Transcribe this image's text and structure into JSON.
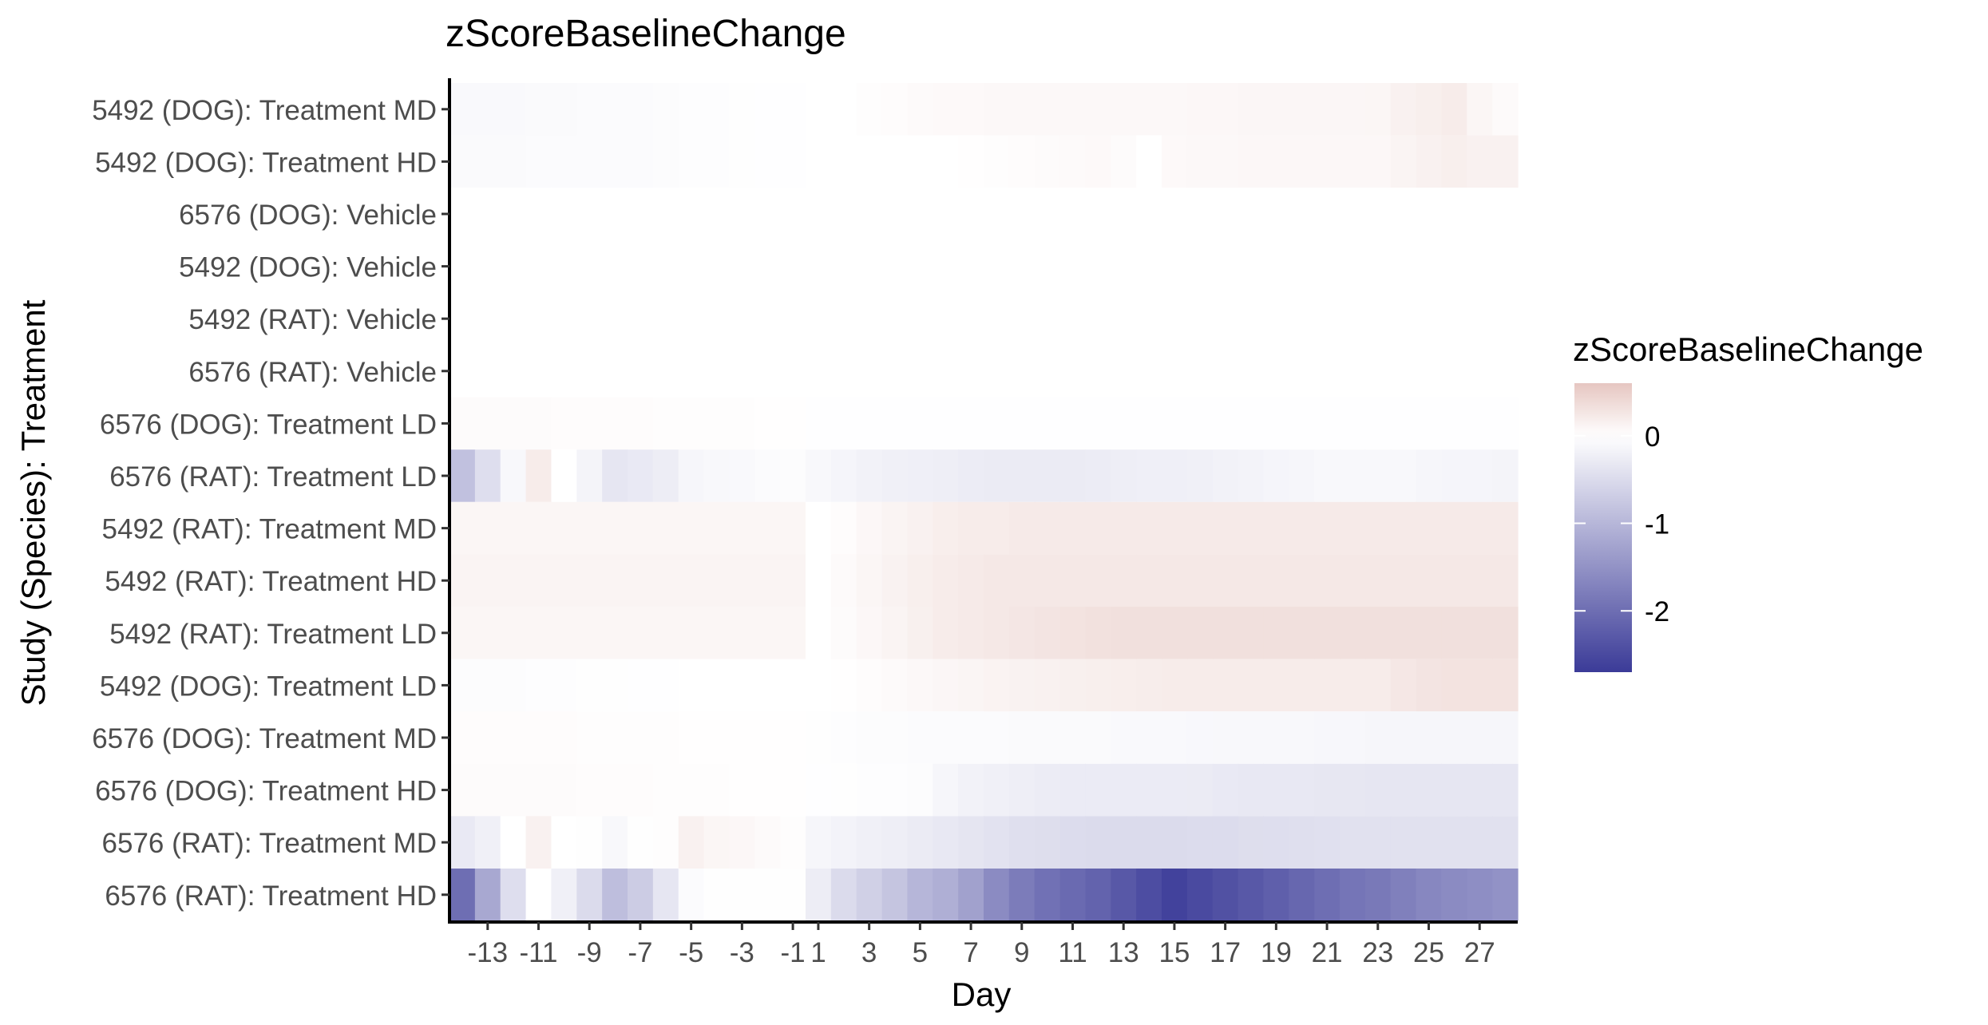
{
  "chart_data": {
    "type": "heatmap",
    "title": "zScoreBaselineChange",
    "xlabel": "Day",
    "ylabel": "Study (Species): Treatment",
    "x_ticks": [
      -13,
      -11,
      -9,
      -7,
      -5,
      -3,
      -1,
      1,
      3,
      5,
      7,
      9,
      11,
      13,
      15,
      17,
      19,
      21,
      23,
      25,
      27
    ],
    "x_tick_labels": [
      "-13",
      "-11",
      "-9",
      "-7",
      "-5",
      "-3",
      "-1",
      "1",
      "3",
      "5",
      "7",
      "9",
      "11",
      "13",
      "15",
      "17",
      "19",
      "21",
      "23",
      "25",
      "27"
    ],
    "days": [
      -14,
      -13,
      -12,
      -11,
      -10,
      -9,
      -8,
      -7,
      -6,
      -5,
      -4,
      -3,
      -2,
      -1,
      1,
      2,
      3,
      4,
      5,
      6,
      7,
      8,
      9,
      10,
      11,
      12,
      13,
      14,
      15,
      16,
      17,
      18,
      19,
      20,
      21,
      22,
      23,
      24,
      25,
      26,
      27,
      28
    ],
    "rows": [
      {
        "label": "5492 (DOG): Treatment MD",
        "values": [
          -0.08,
          -0.08,
          -0.08,
          -0.07,
          -0.07,
          -0.06,
          -0.06,
          -0.05,
          -0.04,
          -0.03,
          -0.03,
          -0.02,
          -0.01,
          -0.01,
          0.0,
          0.0,
          0.02,
          0.03,
          0.05,
          0.06,
          0.06,
          0.07,
          0.07,
          0.07,
          0.07,
          0.07,
          0.07,
          0.07,
          0.07,
          0.08,
          0.08,
          0.09,
          0.09,
          0.09,
          0.09,
          0.09,
          0.1,
          0.15,
          0.17,
          0.2,
          0.1,
          0.05
        ]
      },
      {
        "label": "5492 (DOG): Treatment HD",
        "values": [
          -0.07,
          -0.07,
          -0.07,
          -0.06,
          -0.06,
          -0.06,
          -0.05,
          -0.05,
          -0.04,
          -0.03,
          -0.03,
          -0.02,
          -0.01,
          -0.01,
          0.0,
          0.0,
          0.0,
          0.0,
          0.0,
          0.0,
          0.01,
          0.02,
          0.03,
          0.04,
          0.05,
          0.06,
          0.04,
          0.0,
          0.06,
          0.07,
          0.07,
          0.08,
          0.08,
          0.08,
          0.08,
          0.08,
          0.08,
          0.12,
          0.15,
          0.17,
          0.15,
          0.15
        ]
      },
      {
        "label": "6576 (DOG): Vehicle",
        "values": [
          0,
          0,
          0,
          0,
          0,
          0,
          0,
          0,
          0,
          0,
          0,
          0,
          0,
          0,
          0,
          0,
          0,
          0,
          0,
          0,
          0,
          0,
          0,
          0,
          0,
          0,
          0,
          0,
          0,
          0,
          0,
          0,
          0,
          0,
          0,
          0,
          0,
          0,
          0,
          0,
          0,
          0
        ]
      },
      {
        "label": "5492 (DOG): Vehicle",
        "values": [
          0,
          0,
          0,
          0,
          0,
          0,
          0,
          0,
          0,
          0,
          0,
          0,
          0,
          0,
          0,
          0,
          0,
          0,
          0,
          0,
          0,
          0,
          0,
          0,
          0,
          0,
          0,
          0,
          0,
          0,
          0,
          0,
          0,
          0,
          0,
          0,
          0,
          0,
          0,
          0,
          0,
          0
        ]
      },
      {
        "label": "5492 (RAT): Vehicle",
        "values": [
          0,
          0,
          0,
          0,
          0,
          0,
          0,
          0,
          0,
          0,
          0,
          0,
          0,
          0,
          0,
          0,
          0,
          0,
          0,
          0,
          0,
          0,
          0,
          0,
          0,
          0,
          0,
          0,
          0,
          0,
          0,
          0,
          0,
          0,
          0,
          0,
          0,
          0,
          0,
          0,
          0,
          0
        ]
      },
      {
        "label": "6576 (RAT): Vehicle",
        "values": [
          0,
          0,
          0,
          0,
          0,
          0,
          0,
          0,
          0,
          0,
          0,
          0,
          0,
          0,
          0,
          0,
          0,
          0,
          0,
          0,
          0,
          0,
          0,
          0,
          0,
          0,
          0,
          0,
          0,
          0,
          0,
          0,
          0,
          0,
          0,
          0,
          0,
          0,
          0,
          0,
          0,
          0
        ]
      },
      {
        "label": "6576 (DOG): Treatment LD",
        "values": [
          0.04,
          0.04,
          0.04,
          0.04,
          0.03,
          0.03,
          0.03,
          0.03,
          0.02,
          0.02,
          0.02,
          0.02,
          0.01,
          0.01,
          -0.01,
          -0.01,
          -0.01,
          -0.01,
          -0.01,
          -0.01,
          -0.01,
          -0.01,
          -0.01,
          -0.01,
          -0.01,
          -0.01,
          -0.01,
          -0.01,
          -0.01,
          -0.01,
          -0.01,
          -0.01,
          -0.01,
          -0.01,
          -0.01,
          -0.01,
          -0.01,
          -0.01,
          -0.01,
          -0.01,
          -0.01,
          -0.01
        ]
      },
      {
        "label": "6576 (RAT): Treatment LD",
        "values": [
          -0.85,
          -0.45,
          -0.1,
          0.2,
          0.0,
          -0.15,
          -0.35,
          -0.3,
          -0.25,
          -0.12,
          -0.1,
          -0.08,
          -0.06,
          -0.04,
          -0.1,
          -0.14,
          -0.18,
          -0.2,
          -0.22,
          -0.24,
          -0.26,
          -0.28,
          -0.28,
          -0.28,
          -0.28,
          -0.26,
          -0.24,
          -0.22,
          -0.22,
          -0.2,
          -0.18,
          -0.16,
          -0.14,
          -0.12,
          -0.1,
          -0.1,
          -0.1,
          -0.1,
          -0.12,
          -0.14,
          -0.14,
          -0.15
        ]
      },
      {
        "label": "5492 (RAT): Treatment MD",
        "values": [
          0.1,
          0.1,
          0.1,
          0.1,
          0.1,
          0.1,
          0.1,
          0.1,
          0.1,
          0.1,
          0.1,
          0.1,
          0.1,
          0.1,
          0.0,
          0.03,
          0.08,
          0.12,
          0.15,
          0.18,
          0.2,
          0.2,
          0.22,
          0.22,
          0.22,
          0.22,
          0.22,
          0.22,
          0.22,
          0.22,
          0.22,
          0.22,
          0.22,
          0.22,
          0.22,
          0.22,
          0.22,
          0.22,
          0.22,
          0.22,
          0.22,
          0.22
        ]
      },
      {
        "label": "5492 (RAT): Treatment HD",
        "values": [
          0.12,
          0.12,
          0.12,
          0.12,
          0.12,
          0.12,
          0.12,
          0.12,
          0.12,
          0.12,
          0.12,
          0.12,
          0.12,
          0.12,
          0.0,
          0.05,
          0.1,
          0.14,
          0.17,
          0.2,
          0.22,
          0.24,
          0.24,
          0.24,
          0.24,
          0.24,
          0.24,
          0.24,
          0.24,
          0.24,
          0.24,
          0.24,
          0.24,
          0.24,
          0.24,
          0.24,
          0.24,
          0.24,
          0.24,
          0.24,
          0.24,
          0.24
        ]
      },
      {
        "label": "5492 (RAT): Treatment LD",
        "values": [
          0.1,
          0.1,
          0.1,
          0.1,
          0.1,
          0.1,
          0.1,
          0.1,
          0.1,
          0.1,
          0.1,
          0.1,
          0.1,
          0.1,
          0.0,
          0.04,
          0.08,
          0.12,
          0.16,
          0.2,
          0.22,
          0.24,
          0.26,
          0.28,
          0.3,
          0.32,
          0.33,
          0.33,
          0.33,
          0.33,
          0.33,
          0.33,
          0.33,
          0.33,
          0.33,
          0.33,
          0.33,
          0.33,
          0.33,
          0.33,
          0.33,
          0.33
        ]
      },
      {
        "label": "5492 (DOG): Treatment LD",
        "values": [
          -0.04,
          -0.04,
          -0.04,
          -0.03,
          -0.03,
          -0.02,
          -0.02,
          -0.01,
          -0.01,
          0.0,
          0.0,
          0.0,
          0.0,
          0.0,
          0.0,
          0.01,
          0.03,
          0.05,
          0.07,
          0.09,
          0.11,
          0.13,
          0.14,
          0.15,
          0.16,
          0.17,
          0.18,
          0.19,
          0.2,
          0.2,
          0.2,
          0.2,
          0.2,
          0.2,
          0.2,
          0.2,
          0.2,
          0.25,
          0.28,
          0.3,
          0.3,
          0.3
        ]
      },
      {
        "label": "6576 (DOG): Treatment MD",
        "values": [
          0.03,
          0.03,
          0.03,
          0.03,
          0.03,
          0.02,
          0.02,
          0.02,
          0.02,
          0.01,
          0.01,
          0.01,
          0.01,
          0.01,
          -0.02,
          -0.03,
          -0.04,
          -0.04,
          -0.05,
          -0.05,
          -0.06,
          -0.06,
          -0.07,
          -0.07,
          -0.07,
          -0.07,
          -0.08,
          -0.08,
          -0.08,
          -0.09,
          -0.1,
          -0.1,
          -0.1,
          -0.1,
          -0.11,
          -0.11,
          -0.12,
          -0.12,
          -0.12,
          -0.12,
          -0.12,
          -0.12
        ]
      },
      {
        "label": "6576 (DOG): Treatment HD",
        "values": [
          0.04,
          0.04,
          0.04,
          0.04,
          0.04,
          0.03,
          0.03,
          0.03,
          0.02,
          0.02,
          0.02,
          0.01,
          0.01,
          0.01,
          -0.01,
          -0.02,
          -0.03,
          -0.03,
          -0.04,
          -0.12,
          -0.18,
          -0.2,
          -0.24,
          -0.26,
          -0.27,
          -0.27,
          -0.27,
          -0.27,
          -0.27,
          -0.28,
          -0.3,
          -0.31,
          -0.32,
          -0.32,
          -0.33,
          -0.33,
          -0.34,
          -0.34,
          -0.35,
          -0.35,
          -0.35,
          -0.35
        ]
      },
      {
        "label": "6576 (RAT): Treatment MD",
        "values": [
          -0.3,
          -0.2,
          0.0,
          0.15,
          0.0,
          -0.02,
          -0.1,
          -0.02,
          0.02,
          0.15,
          0.1,
          0.08,
          0.05,
          0.02,
          -0.12,
          -0.16,
          -0.2,
          -0.24,
          -0.28,
          -0.32,
          -0.36,
          -0.4,
          -0.44,
          -0.46,
          -0.48,
          -0.5,
          -0.5,
          -0.5,
          -0.5,
          -0.48,
          -0.48,
          -0.46,
          -0.45,
          -0.44,
          -0.43,
          -0.42,
          -0.42,
          -0.42,
          -0.42,
          -0.42,
          -0.42,
          -0.42
        ]
      },
      {
        "label": "6576 (RAT): Treatment HD",
        "values": [
          -2.0,
          -1.2,
          -0.45,
          0.0,
          -0.2,
          -0.5,
          -0.9,
          -0.7,
          -0.35,
          -0.05,
          -0.02,
          -0.02,
          -0.02,
          -0.02,
          -0.25,
          -0.5,
          -0.65,
          -0.8,
          -1.0,
          -1.1,
          -1.3,
          -1.6,
          -1.8,
          -1.95,
          -2.05,
          -2.15,
          -2.3,
          -2.45,
          -2.6,
          -2.5,
          -2.4,
          -2.3,
          -2.2,
          -2.1,
          -2.0,
          -1.9,
          -1.85,
          -1.75,
          -1.65,
          -1.6,
          -1.55,
          -1.5
        ]
      }
    ],
    "color_scale": {
      "low_color": "#3b3b98",
      "mid_color": "#ffffff",
      "high_color": "#e6c6c1",
      "midpoint": 0,
      "min": -2.7,
      "max": 0.6
    },
    "legend": {
      "title": "zScoreBaselineChange",
      "tick_values": [
        0,
        -1,
        -2
      ],
      "tick_labels": [
        "0",
        "-1",
        "-2"
      ],
      "position": "right"
    }
  }
}
